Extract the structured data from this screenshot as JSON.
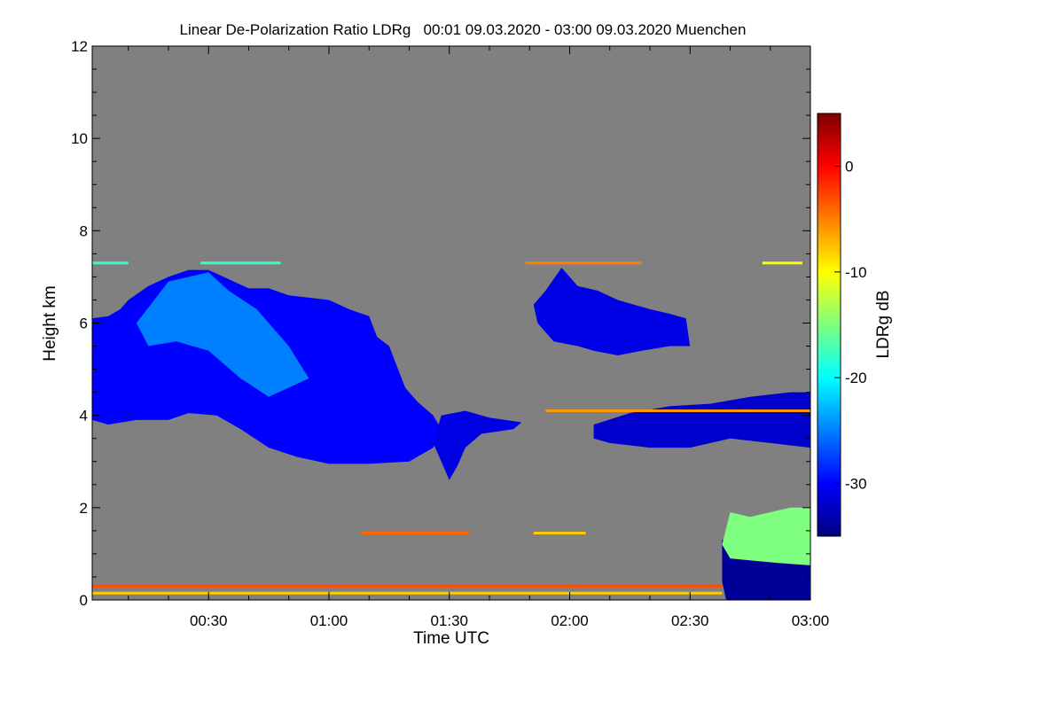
{
  "chart_data": {
    "type": "heatmap",
    "title": "Linear De-Polarization Ratio LDRg   00:01 09.03.2020 - 03:00 09.03.2020 Muenchen",
    "xlabel": "Time UTC",
    "ylabel": "Height km",
    "colorbar_label": "LDRg dB",
    "x_range_minutes": [
      1,
      180
    ],
    "x_ticks": [
      {
        "value": 30,
        "label": "00:30"
      },
      {
        "value": 60,
        "label": "01:00"
      },
      {
        "value": 90,
        "label": "01:30"
      },
      {
        "value": 120,
        "label": "02:00"
      },
      {
        "value": 150,
        "label": "02:30"
      },
      {
        "value": 180,
        "label": "03:00"
      }
    ],
    "ylim": [
      0,
      12
    ],
    "y_ticks": [
      {
        "value": 0,
        "label": "0"
      },
      {
        "value": 2,
        "label": "2"
      },
      {
        "value": 4,
        "label": "4"
      },
      {
        "value": 6,
        "label": "6"
      },
      {
        "value": 8,
        "label": "8"
      },
      {
        "value": 10,
        "label": "10"
      },
      {
        "value": 12,
        "label": "12"
      }
    ],
    "colorbar_range_db": [
      -35,
      5
    ],
    "colorbar_ticks": [
      {
        "value": 0,
        "label": "0"
      },
      {
        "value": -10,
        "label": "-10"
      },
      {
        "value": -20,
        "label": "-20"
      },
      {
        "value": -30,
        "label": "-30"
      }
    ],
    "colormap": [
      "#00007f",
      "#0000ff",
      "#007fff",
      "#00ffff",
      "#7fff7f",
      "#ffff00",
      "#ff7f00",
      "#ff0000",
      "#7f0000"
    ],
    "no_data_color": "#808080",
    "regions": [
      {
        "name": "cirrus-main",
        "ldr_db": -30,
        "polygon": [
          [
            1,
            6.1
          ],
          [
            5,
            6.15
          ],
          [
            8,
            6.3
          ],
          [
            10,
            6.5
          ],
          [
            15,
            6.8
          ],
          [
            20,
            7.0
          ],
          [
            25,
            7.15
          ],
          [
            30,
            7.15
          ],
          [
            35,
            6.95
          ],
          [
            40,
            6.75
          ],
          [
            45,
            6.75
          ],
          [
            50,
            6.6
          ],
          [
            55,
            6.55
          ],
          [
            60,
            6.5
          ],
          [
            65,
            6.3
          ],
          [
            70,
            6.15
          ],
          [
            72,
            5.7
          ],
          [
            75,
            5.5
          ],
          [
            79,
            4.6
          ],
          [
            82,
            4.3
          ],
          [
            86,
            4.0
          ],
          [
            88,
            3.7
          ],
          [
            86,
            3.3
          ],
          [
            80,
            3.0
          ],
          [
            70,
            2.95
          ],
          [
            60,
            2.95
          ],
          [
            52,
            3.1
          ],
          [
            45,
            3.3
          ],
          [
            38,
            3.7
          ],
          [
            32,
            4.0
          ],
          [
            25,
            4.05
          ],
          [
            20,
            3.9
          ],
          [
            12,
            3.9
          ],
          [
            5,
            3.8
          ],
          [
            1,
            3.9
          ]
        ]
      },
      {
        "name": "cirrus-streaks",
        "ldr_db": -25,
        "polygon": [
          [
            12,
            6.0
          ],
          [
            20,
            6.9
          ],
          [
            30,
            7.1
          ],
          [
            35,
            6.7
          ],
          [
            42,
            6.3
          ],
          [
            50,
            5.5
          ],
          [
            55,
            4.8
          ],
          [
            45,
            4.4
          ],
          [
            38,
            4.8
          ],
          [
            30,
            5.4
          ],
          [
            22,
            5.6
          ],
          [
            15,
            5.5
          ]
        ]
      },
      {
        "name": "layer-4km-west",
        "ldr_db": -31,
        "polygon": [
          [
            88,
            4.0
          ],
          [
            94,
            4.1
          ],
          [
            100,
            3.95
          ],
          [
            108,
            3.85
          ],
          [
            106,
            3.7
          ],
          [
            98,
            3.6
          ],
          [
            94,
            3.3
          ],
          [
            92,
            2.9
          ],
          [
            90,
            2.6
          ],
          [
            88,
            3.0
          ],
          [
            86,
            3.4
          ]
        ]
      },
      {
        "name": "layer-4km-east",
        "ldr_db": -32,
        "polygon": [
          [
            126,
            3.8
          ],
          [
            135,
            4.05
          ],
          [
            145,
            4.2
          ],
          [
            155,
            4.25
          ],
          [
            165,
            4.4
          ],
          [
            175,
            4.5
          ],
          [
            180,
            4.5
          ],
          [
            180,
            3.3
          ],
          [
            170,
            3.4
          ],
          [
            160,
            3.5
          ],
          [
            150,
            3.3
          ],
          [
            140,
            3.3
          ],
          [
            130,
            3.4
          ],
          [
            126,
            3.5
          ]
        ]
      },
      {
        "name": "midlevel-cloud",
        "ldr_db": -31,
        "polygon": [
          [
            114,
            6.7
          ],
          [
            118,
            7.2
          ],
          [
            122,
            6.8
          ],
          [
            127,
            6.7
          ],
          [
            132,
            6.5
          ],
          [
            136,
            6.4
          ],
          [
            140,
            6.3
          ],
          [
            145,
            6.2
          ],
          [
            149,
            6.1
          ],
          [
            150,
            5.5
          ],
          [
            145,
            5.5
          ],
          [
            138,
            5.4
          ],
          [
            132,
            5.3
          ],
          [
            126,
            5.4
          ],
          [
            122,
            5.5
          ],
          [
            116,
            5.6
          ],
          [
            112,
            6.0
          ],
          [
            111,
            6.4
          ]
        ]
      },
      {
        "name": "boundary-layer",
        "ldr_db": -34,
        "polygon": [
          [
            158,
            1.3
          ],
          [
            165,
            1.25
          ],
          [
            172,
            1.1
          ],
          [
            180,
            1.0
          ],
          [
            180,
            0.0
          ],
          [
            159,
            0.0
          ],
          [
            158,
            0.4
          ]
        ]
      },
      {
        "name": "boundary-layer-top",
        "ldr_db": -15,
        "polygon": [
          [
            160,
            1.9
          ],
          [
            165,
            1.8
          ],
          [
            170,
            1.9
          ],
          [
            175,
            2.0
          ],
          [
            180,
            2.0
          ],
          [
            180,
            0.75
          ],
          [
            172,
            0.8
          ],
          [
            166,
            0.85
          ],
          [
            160,
            0.9
          ],
          [
            158,
            1.2
          ]
        ]
      }
    ],
    "bands": [
      {
        "name": "surface-return",
        "ldr_db": -3,
        "x": [
          1,
          158
        ],
        "y": 0.3
      },
      {
        "name": "surface-secondary",
        "ldr_db": -8,
        "x": [
          1,
          158
        ],
        "y": 0.15
      },
      {
        "name": "band-7.3km-west",
        "ldr_db": -18,
        "x": [
          1,
          10
        ],
        "y": 7.3
      },
      {
        "name": "band-7.3km-mid",
        "ldr_db": -18,
        "x": [
          28,
          48
        ],
        "y": 7.3
      },
      {
        "name": "band-7.3km-east",
        "ldr_db": -5,
        "x": [
          109,
          138
        ],
        "y": 7.3
      },
      {
        "name": "band-7.3km-far",
        "ldr_db": -10,
        "x": [
          168,
          178
        ],
        "y": 7.3
      },
      {
        "name": "band-4.1km",
        "ldr_db": -6,
        "x": [
          114,
          180
        ],
        "y": 4.1
      },
      {
        "name": "aerosol-1.4km-a",
        "ldr_db": -4,
        "x": [
          68,
          95
        ],
        "y": 1.45
      },
      {
        "name": "aerosol-1.4km-b",
        "ldr_db": -8,
        "x": [
          111,
          124
        ],
        "y": 1.45
      }
    ]
  }
}
